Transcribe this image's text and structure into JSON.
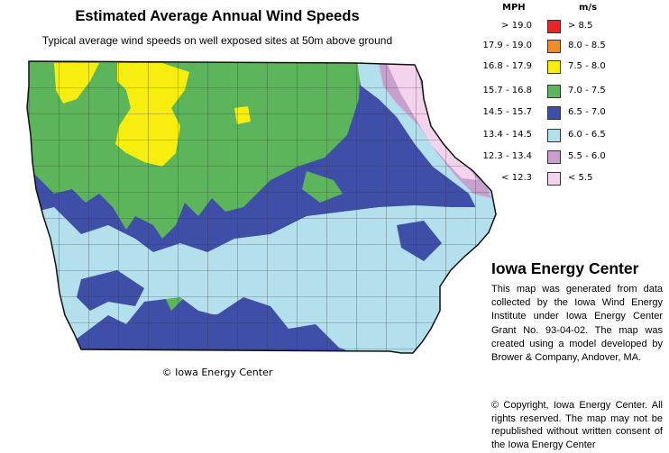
{
  "title": "Estimated Average Annual Wind Speeds",
  "subtitle": "Typical average wind speeds on well exposed sites at 50m above ground",
  "legend": {
    "mph_header": "MPH",
    "ms_header": "m/s",
    "rows": [
      {
        "mph": "> 19.0",
        "ms": "> 8.5",
        "color": "#e8262a"
      },
      {
        "mph": "17.9 - 19.0",
        "ms": "8.0 - 8.5",
        "color": "#f28c28"
      },
      {
        "mph": "16.8 - 17.9",
        "ms": "7.5 - 8.0",
        "color": "#f7ee0f"
      },
      {
        "mph": "15.7 - 16.8",
        "ms": "7.0 - 7.5",
        "color": "#5cb55a"
      },
      {
        "mph": "14.5 - 15.7",
        "ms": "6.5 - 7.0",
        "color": "#3f4fa8"
      },
      {
        "mph": "13.4 - 14.5",
        "ms": "6.0 - 6.5",
        "color": "#b4e0ee"
      },
      {
        "mph": "12.3 - 13.4",
        "ms": "5.5 - 6.0",
        "color": "#c7a0cd"
      },
      {
        "mph": "< 12.3",
        "ms": "< 5.5",
        "color": "#f4d4ec"
      }
    ]
  },
  "map_copyright": "© Iowa Energy Center",
  "center_title": "Iowa Energy Center",
  "description": "This map was generated from data collected by the Iowa Wind Energy Institute under Iowa Energy Center Grant No. 93-04-02. The map was created using a model developed by Brower & Company, Andover, MA.",
  "rights": "© Copyright, Iowa Energy Center. All rights reserved. The map may not be republished without written consent of the Iowa Energy Center"
}
